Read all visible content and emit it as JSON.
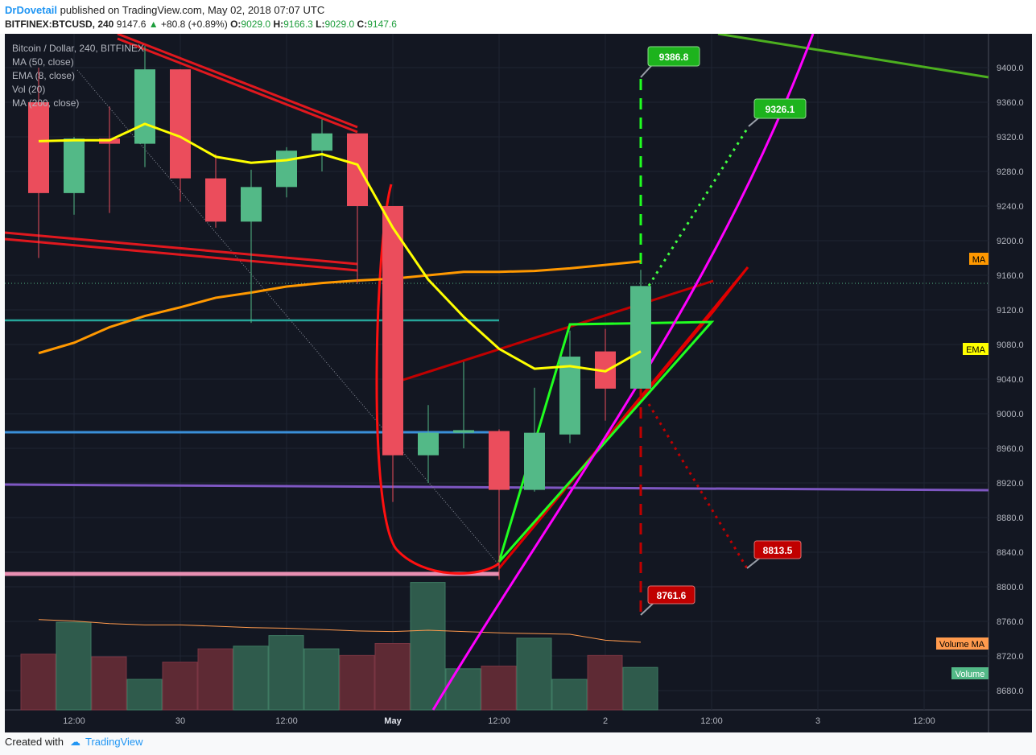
{
  "header": {
    "author": "DrDovetail",
    "published_text": "published on TradingView.com, May 02, 2018 07:07 UTC",
    "symbol": "BITFINEX:BTCUSD, 240",
    "last": "9147.6",
    "change_arrow": "▲",
    "change": "+80.8 (+0.89%)",
    "o_label": "O:",
    "o_value": "9029.0",
    "h_label": "H:",
    "h_value": "9166.3",
    "l_label": "L:",
    "l_value": "9029.0",
    "c_label": "C:",
    "c_value": "9147.6"
  },
  "legend": {
    "title": "Bitcoin / Dollar, 240, BITFINEX",
    "ma50": "MA (50, close)",
    "ema8": "EMA (8, close)",
    "vol": "Vol (20)",
    "ma200": "MA (200, close)"
  },
  "footer": {
    "created_with": "Created with",
    "brand": "TradingView"
  },
  "colors": {
    "background": "#131722",
    "up": "#53b987",
    "down": "#eb4d5c",
    "ema": "#ffff00",
    "ma": "#ff9800",
    "vol_ma": "#ff9a4d",
    "green_label": "#1db31d",
    "red_label": "#c00000"
  },
  "chart_data": {
    "type": "candlestick",
    "symbol": "BITFINEX:BTCUSD",
    "interval": "240",
    "price_axis": {
      "ticks": [
        "9400.0",
        "9360.0",
        "9320.0",
        "9280.0",
        "9240.0",
        "9200.0",
        "9160.0",
        "9120.0",
        "9080.0",
        "9040.0",
        "9000.0",
        "8960.0",
        "8920.0",
        "8880.0",
        "8840.0",
        "8800.0",
        "8760.0",
        "8720.0",
        "8680.0"
      ],
      "range": [
        8648,
        9440
      ]
    },
    "time_axis": {
      "labels": [
        "12:00",
        "30",
        "12:00",
        "May",
        "12:00",
        "2",
        "12:00",
        "3",
        "12:00"
      ],
      "label_bars": [
        1,
        4,
        7,
        10,
        13,
        16,
        19,
        22,
        25
      ]
    },
    "candles": [
      {
        "o": 9360,
        "h": 9400,
        "l": 9180,
        "c": 9255
      },
      {
        "o": 9255,
        "h": 9320,
        "l": 9230,
        "c": 9318
      },
      {
        "o": 9318,
        "h": 9355,
        "l": 9232,
        "c": 9312
      },
      {
        "o": 9312,
        "h": 9425,
        "l": 9285,
        "c": 9398
      },
      {
        "o": 9398,
        "h": 9398,
        "l": 9245,
        "c": 9272
      },
      {
        "o": 9272,
        "h": 9300,
        "l": 9215,
        "c": 9222
      },
      {
        "o": 9222,
        "h": 9282,
        "l": 9105,
        "c": 9262
      },
      {
        "o": 9262,
        "h": 9308,
        "l": 9250,
        "c": 9304
      },
      {
        "o": 9304,
        "h": 9340,
        "l": 9280,
        "c": 9324
      },
      {
        "o": 9324,
        "h": 9324,
        "l": 9150,
        "c": 9240
      },
      {
        "o": 9240,
        "h": 9240,
        "l": 8898,
        "c": 8952
      },
      {
        "o": 8952,
        "h": 9010,
        "l": 8920,
        "c": 8978
      },
      {
        "o": 8978,
        "h": 9060,
        "l": 8960,
        "c": 8981
      },
      {
        "o": 8980,
        "h": 8982,
        "l": 8808,
        "c": 8912
      },
      {
        "o": 8912,
        "h": 9030,
        "l": 8910,
        "c": 8978
      },
      {
        "o": 8976,
        "h": 9096,
        "l": 8966,
        "c": 9066
      },
      {
        "o": 9072,
        "h": 9098,
        "l": 8992,
        "c": 9029
      },
      {
        "o": 9029,
        "h": 9166.3,
        "l": 9029,
        "c": 9147.6
      }
    ],
    "volume": [
      420,
      660,
      400,
      230,
      360,
      460,
      480,
      560,
      460,
      410,
      500,
      960,
      310,
      330,
      540,
      230,
      410,
      320
    ],
    "volume_ma": [
      680,
      670,
      650,
      640,
      640,
      630,
      620,
      615,
      605,
      595,
      590,
      600,
      590,
      580,
      575,
      570,
      525,
      510
    ],
    "ema8": [
      9315,
      9316,
      9316,
      9335,
      9320,
      9297,
      9290,
      9293,
      9300,
      9288,
      9215,
      9155,
      9112,
      9075,
      9052,
      9055,
      9049,
      9072
    ],
    "ma200": [
      9070,
      9082,
      9100,
      9113,
      9123,
      9134,
      9140,
      9147,
      9151,
      9154,
      9156,
      9160,
      9164,
      9164,
      9165,
      9168,
      9172,
      9176
    ],
    "indicator_tags": [
      "MA",
      "EMA",
      "Volume MA",
      "Volume"
    ],
    "annotations": {
      "target_high": "9386.8",
      "target_mid": "9326.1",
      "target_low_right": "8813.5",
      "target_low": "8761.6"
    }
  }
}
